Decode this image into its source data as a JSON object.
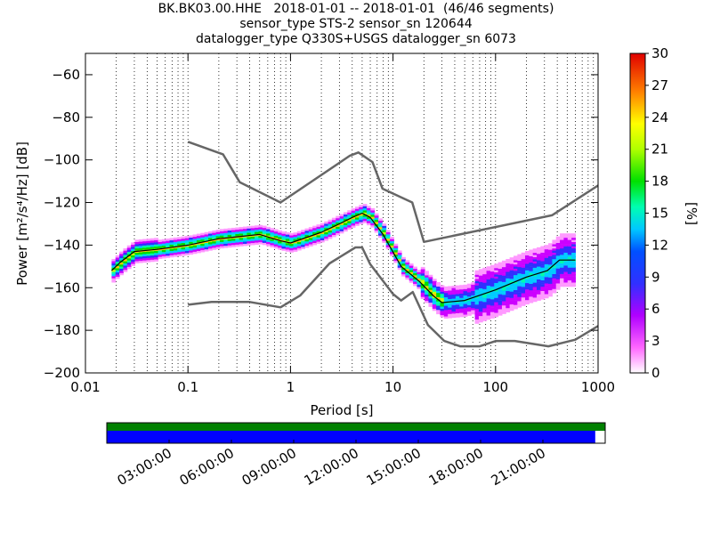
{
  "chart_data": {
    "type": "heatmap",
    "title": [
      "BK.BK03.00.HHE   2018-01-01 -- 2018-01-01  (46/46 segments)",
      "sensor_type STS-2 sensor_sn 120644",
      "datalogger_type Q330S+USGS datalogger_sn 6073"
    ],
    "xlabel": "Period [s]",
    "ylabel": "Power [m²/s⁴/Hz] [dB]",
    "xscale": "log",
    "xlim": [
      0.01,
      1000
    ],
    "ylim": [
      -200,
      -50
    ],
    "x_ticks": [
      0.01,
      0.1,
      1,
      10,
      100,
      1000
    ],
    "x_tick_labels": [
      "0.01",
      "0.1",
      "1",
      "10",
      "100",
      "1000"
    ],
    "y_ticks": [
      -200,
      -180,
      -160,
      -140,
      -120,
      -100,
      -80,
      -60
    ],
    "y_tick_labels": [
      "−200",
      "−180",
      "−160",
      "−140",
      "−120",
      "−100",
      "−80",
      "−60"
    ],
    "grid": "dotted vertical lines at every log-decade subdivision",
    "colorbar": {
      "label": "[%]",
      "ticks": [
        "0",
        "3",
        "6",
        "9",
        "12",
        "15",
        "18",
        "21",
        "24",
        "27",
        "30"
      ],
      "range": [
        0,
        30
      ],
      "colormap": "pqlx (white-magenta-blue-cyan-green-yellow-red)"
    },
    "noise_model_high": [
      [
        0.1,
        -91.5
      ],
      [
        0.22,
        -97.4
      ],
      [
        0.32,
        -110.5
      ],
      [
        0.8,
        -120
      ],
      [
        3.8,
        -98
      ],
      [
        4.6,
        -96.5
      ],
      [
        6.3,
        -101
      ],
      [
        7.9,
        -113.5
      ],
      [
        15.4,
        -120
      ],
      [
        20,
        -138.5
      ],
      [
        354.8,
        -126
      ],
      [
        1000,
        -112
      ]
    ],
    "noise_model_low": [
      [
        0.1,
        -168
      ],
      [
        0.17,
        -166.7
      ],
      [
        0.4,
        -166.7
      ],
      [
        0.8,
        -169.2
      ],
      [
        1.24,
        -163.7
      ],
      [
        2.4,
        -148.6
      ],
      [
        4.3,
        -141.1
      ],
      [
        5,
        -141.1
      ],
      [
        6,
        -149
      ],
      [
        10,
        -163
      ],
      [
        12,
        -166
      ],
      [
        15.6,
        -162
      ],
      [
        21.9,
        -177.5
      ],
      [
        31.6,
        -185
      ],
      [
        45,
        -187.5
      ],
      [
        70,
        -187.5
      ],
      [
        101,
        -185
      ],
      [
        154,
        -185
      ],
      [
        328,
        -187.5
      ],
      [
        600,
        -184.4
      ],
      [
        1000,
        -178
      ]
    ],
    "median": [
      [
        0.018,
        -152
      ],
      [
        0.022,
        -148
      ],
      [
        0.03,
        -143
      ],
      [
        0.05,
        -142
      ],
      [
        0.1,
        -140
      ],
      [
        0.2,
        -137
      ],
      [
        0.5,
        -135
      ],
      [
        0.8,
        -138
      ],
      [
        1,
        -139
      ],
      [
        2,
        -134
      ],
      [
        3,
        -130
      ],
      [
        4,
        -127
      ],
      [
        5,
        -125
      ],
      [
        6,
        -127
      ],
      [
        8,
        -135
      ],
      [
        12,
        -150
      ],
      [
        18,
        -157
      ],
      [
        25,
        -164
      ],
      [
        30,
        -167
      ],
      [
        50,
        -166
      ],
      [
        100,
        -161
      ],
      [
        200,
        -155
      ],
      [
        320,
        -152
      ],
      [
        420,
        -147
      ],
      [
        600,
        -147
      ]
    ],
    "axis_bottom": {
      "type": "data availability timeline",
      "tick_labels": [
        "03:00:00",
        "06:00:00",
        "09:00:00",
        "12:00:00",
        "15:00:00",
        "18:00:00",
        "21:00:00"
      ],
      "coverage_fraction": 0.98
    }
  },
  "colors": {
    "noise_model": "#666666",
    "median": "#000000",
    "grid": "#000000",
    "coverage_top": "#008000",
    "coverage_main": "#0000ff"
  }
}
